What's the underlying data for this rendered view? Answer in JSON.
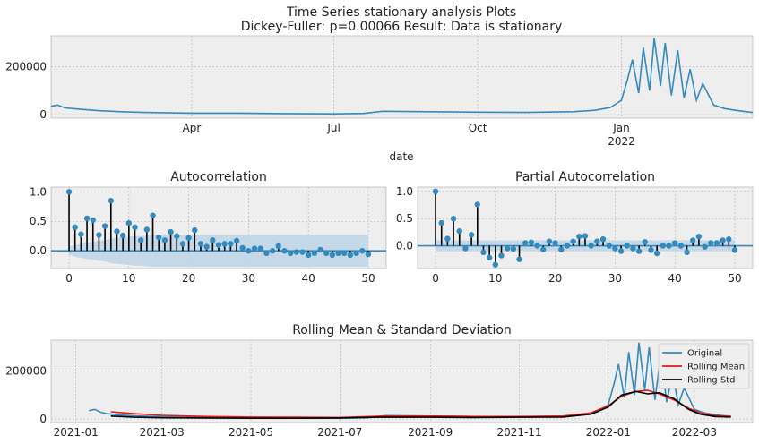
{
  "suptitle": {
    "line1": "Time Series stationary analysis Plots",
    "line2": "Dickey-Fuller: p=0.00066 Result: Data is stationary"
  },
  "colors": {
    "series": "#348ABD",
    "rolling_mean": "#E41A1C",
    "rolling_std": "#000000",
    "axes_bg": "#EEEEEE",
    "grid": "#B2B2B2",
    "confidence": "#BCD4E6"
  },
  "chart_data": [
    {
      "id": "timeseries",
      "type": "line",
      "title": "",
      "xlabel": "date",
      "ylabel": "",
      "x_range": [
        "2021-01-01",
        "2022-03-26"
      ],
      "ylim": [
        -15000,
        330000
      ],
      "yticks": [
        0,
        200000
      ],
      "ytick_labels": [
        "0",
        "200000"
      ],
      "xticks": [
        "2021-04-01",
        "2021-07-01",
        "2021-10-01",
        "2022-01-01"
      ],
      "xtick_labels": [
        "Apr",
        "Jul",
        "Oct",
        "Jan"
      ],
      "xtick_sublabel": "2022",
      "grid": true,
      "series": [
        {
          "x": [
            "2021-01-01",
            "2021-01-05",
            "2021-01-10",
            "2021-01-20",
            "2021-02-01",
            "2021-02-15",
            "2021-03-01",
            "2021-04-01",
            "2021-05-01",
            "2021-06-01",
            "2021-07-01",
            "2021-07-20",
            "2021-08-01",
            "2021-09-01",
            "2021-10-01",
            "2021-11-01",
            "2021-12-01",
            "2021-12-15",
            "2021-12-25",
            "2022-01-01",
            "2022-01-05",
            "2022-01-08",
            "2022-01-12",
            "2022-01-15",
            "2022-01-19",
            "2022-01-22",
            "2022-01-26",
            "2022-01-29",
            "2022-02-02",
            "2022-02-06",
            "2022-02-10",
            "2022-02-14",
            "2022-02-18",
            "2022-02-22",
            "2022-03-01",
            "2022-03-08",
            "2022-03-15",
            "2022-03-22",
            "2022-03-26"
          ],
          "values": [
            35000,
            40000,
            28000,
            22000,
            16000,
            12000,
            9000,
            6000,
            6000,
            4000,
            3000,
            5000,
            14000,
            12000,
            10000,
            9000,
            12000,
            18000,
            30000,
            60000,
            150000,
            230000,
            90000,
            280000,
            100000,
            320000,
            120000,
            300000,
            80000,
            270000,
            70000,
            190000,
            60000,
            130000,
            40000,
            25000,
            18000,
            12000,
            9000
          ]
        }
      ]
    },
    {
      "id": "acf",
      "type": "scatter",
      "title": "Autocorrelation",
      "xlim": [
        -3,
        53
      ],
      "ylim": [
        -0.3,
        1.08
      ],
      "xticks": [
        0,
        10,
        20,
        30,
        40,
        50
      ],
      "xtick_labels": [
        "0",
        "10",
        "20",
        "30",
        "40",
        "50"
      ],
      "yticks": [
        0.0,
        0.5,
        1.0
      ],
      "ytick_labels": [
        "0.0",
        "0.5",
        "1.0"
      ],
      "grid": true,
      "lags": [
        0,
        1,
        2,
        3,
        4,
        5,
        6,
        7,
        8,
        9,
        10,
        11,
        12,
        13,
        14,
        15,
        16,
        17,
        18,
        19,
        20,
        21,
        22,
        23,
        24,
        25,
        26,
        27,
        28,
        29,
        30,
        31,
        32,
        33,
        34,
        35,
        36,
        37,
        38,
        39,
        40,
        41,
        42,
        43,
        44,
        45,
        46,
        47,
        48,
        49,
        50
      ],
      "values": [
        1.0,
        0.4,
        0.28,
        0.55,
        0.52,
        0.27,
        0.42,
        0.85,
        0.33,
        0.26,
        0.47,
        0.4,
        0.18,
        0.36,
        0.6,
        0.23,
        0.18,
        0.32,
        0.25,
        0.12,
        0.22,
        0.35,
        0.12,
        0.07,
        0.18,
        0.1,
        0.12,
        0.12,
        0.17,
        0.05,
        0.0,
        0.04,
        0.04,
        -0.04,
        0.0,
        0.08,
        0.0,
        -0.04,
        -0.02,
        -0.02,
        -0.07,
        -0.04,
        0.02,
        -0.04,
        -0.07,
        -0.04,
        -0.04,
        -0.07,
        -0.04,
        0.0,
        -0.06
      ],
      "confidence_upper": [
        0.07,
        0.1,
        0.12,
        0.14,
        0.15,
        0.17,
        0.18,
        0.21,
        0.22,
        0.23,
        0.24,
        0.25,
        0.25,
        0.26,
        0.27,
        0.27,
        0.27,
        0.27,
        0.27,
        0.27,
        0.27,
        0.27,
        0.27,
        0.27,
        0.27,
        0.27,
        0.27,
        0.27,
        0.27,
        0.27,
        0.27,
        0.27,
        0.27,
        0.27,
        0.27,
        0.27,
        0.27,
        0.27,
        0.27,
        0.27,
        0.27,
        0.27,
        0.27,
        0.27,
        0.27,
        0.27,
        0.27,
        0.27,
        0.27,
        0.27,
        0.27
      ]
    },
    {
      "id": "pacf",
      "type": "scatter",
      "title": "Partial Autocorrelation",
      "xlim": [
        -3,
        53
      ],
      "ylim": [
        -0.42,
        1.08
      ],
      "xticks": [
        0,
        10,
        20,
        30,
        40,
        50
      ],
      "xtick_labels": [
        "0",
        "10",
        "20",
        "30",
        "40",
        "50"
      ],
      "yticks": [
        0.0,
        0.5,
        1.0
      ],
      "ytick_labels": [
        "0.0",
        "0.5",
        "1.0"
      ],
      "grid": true,
      "confidence": 0.1,
      "lags": [
        0,
        1,
        2,
        3,
        4,
        5,
        6,
        7,
        8,
        9,
        10,
        11,
        12,
        13,
        14,
        15,
        16,
        17,
        18,
        19,
        20,
        21,
        22,
        23,
        24,
        25,
        26,
        27,
        28,
        29,
        30,
        31,
        32,
        33,
        34,
        35,
        36,
        37,
        38,
        39,
        40,
        41,
        42,
        43,
        44,
        45,
        46,
        47,
        48,
        49,
        50
      ],
      "values": [
        1.0,
        0.42,
        0.13,
        0.5,
        0.27,
        -0.05,
        0.2,
        0.76,
        -0.12,
        -0.22,
        -0.35,
        -0.18,
        -0.05,
        -0.06,
        -0.25,
        0.05,
        0.06,
        0.0,
        -0.07,
        0.08,
        0.05,
        -0.07,
        0.0,
        0.08,
        0.17,
        0.18,
        0.0,
        0.08,
        0.12,
        0.0,
        -0.05,
        -0.1,
        0.0,
        -0.05,
        -0.1,
        0.07,
        -0.08,
        -0.14,
        0.0,
        0.0,
        0.05,
        0.0,
        -0.12,
        0.1,
        0.17,
        -0.02,
        0.05,
        0.05,
        0.1,
        0.12,
        -0.08
      ]
    },
    {
      "id": "rolling",
      "type": "line",
      "title": "Rolling Mean & Standard Deviation",
      "x_range": [
        "2020-12-15",
        "2022-04-10"
      ],
      "ylim": [
        -15000,
        330000
      ],
      "yticks": [
        0,
        200000
      ],
      "ytick_labels": [
        "0",
        "200000"
      ],
      "xticks": [
        "2021-01-01",
        "2021-03-01",
        "2021-05-01",
        "2021-07-01",
        "2021-09-01",
        "2021-11-01",
        "2022-01-01",
        "2022-03-01"
      ],
      "xtick_labels": [
        "2021-01",
        "2021-03",
        "2021-05",
        "2021-07",
        "2021-09",
        "2021-11",
        "2022-01",
        "2022-03"
      ],
      "grid": true,
      "legend": "top-right",
      "series": [
        {
          "name": "Original",
          "x": [
            "2021-01-10",
            "2021-01-14",
            "2021-01-18",
            "2021-01-22",
            "2021-02-01",
            "2021-02-15",
            "2021-03-01",
            "2021-04-01",
            "2021-05-01",
            "2021-06-01",
            "2021-07-01",
            "2021-07-20",
            "2021-08-01",
            "2021-09-01",
            "2021-10-01",
            "2021-11-01",
            "2021-12-01",
            "2021-12-15",
            "2021-12-25",
            "2022-01-01",
            "2022-01-05",
            "2022-01-08",
            "2022-01-12",
            "2022-01-15",
            "2022-01-19",
            "2022-01-22",
            "2022-01-26",
            "2022-01-29",
            "2022-02-02",
            "2022-02-06",
            "2022-02-10",
            "2022-02-14",
            "2022-02-18",
            "2022-02-22",
            "2022-03-01",
            "2022-03-08",
            "2022-03-15",
            "2022-03-22",
            "2022-03-26"
          ],
          "values": [
            35000,
            40000,
            28000,
            22000,
            16000,
            12000,
            9000,
            6000,
            6000,
            4000,
            3000,
            5000,
            14000,
            12000,
            10000,
            9000,
            12000,
            18000,
            30000,
            60000,
            150000,
            230000,
            90000,
            280000,
            100000,
            320000,
            120000,
            300000,
            80000,
            270000,
            70000,
            190000,
            60000,
            130000,
            40000,
            25000,
            18000,
            12000,
            9000
          ]
        },
        {
          "name": "Rolling Mean",
          "x": [
            "2021-01-25",
            "2021-02-10",
            "2021-03-01",
            "2021-04-01",
            "2021-05-01",
            "2021-06-01",
            "2021-07-01",
            "2021-08-01",
            "2021-09-01",
            "2021-10-01",
            "2021-11-01",
            "2021-12-01",
            "2021-12-20",
            "2022-01-01",
            "2022-01-10",
            "2022-01-20",
            "2022-01-28",
            "2022-02-05",
            "2022-02-15",
            "2022-02-25",
            "2022-03-05",
            "2022-03-15",
            "2022-03-26"
          ],
          "values": [
            30000,
            22000,
            15000,
            10000,
            8000,
            7000,
            6000,
            12000,
            12000,
            10000,
            10000,
            12000,
            25000,
            55000,
            95000,
            115000,
            120000,
            105000,
            80000,
            45000,
            25000,
            14000,
            12000
          ]
        },
        {
          "name": "Rolling Std",
          "x": [
            "2021-01-25",
            "2021-02-10",
            "2021-03-01",
            "2021-04-01",
            "2021-05-01",
            "2021-06-01",
            "2021-07-01",
            "2021-08-01",
            "2021-09-01",
            "2021-10-01",
            "2021-11-01",
            "2021-12-01",
            "2021-12-20",
            "2022-01-01",
            "2022-01-10",
            "2022-01-20",
            "2022-01-28",
            "2022-02-05",
            "2022-02-15",
            "2022-02-25",
            "2022-03-05",
            "2022-03-15",
            "2022-03-26"
          ],
          "values": [
            12000,
            7000,
            5000,
            4000,
            3000,
            3000,
            4000,
            8000,
            7000,
            6000,
            7000,
            8000,
            20000,
            50000,
            100000,
            115000,
            105000,
            110000,
            85000,
            40000,
            20000,
            10000,
            8000
          ]
        }
      ]
    }
  ]
}
